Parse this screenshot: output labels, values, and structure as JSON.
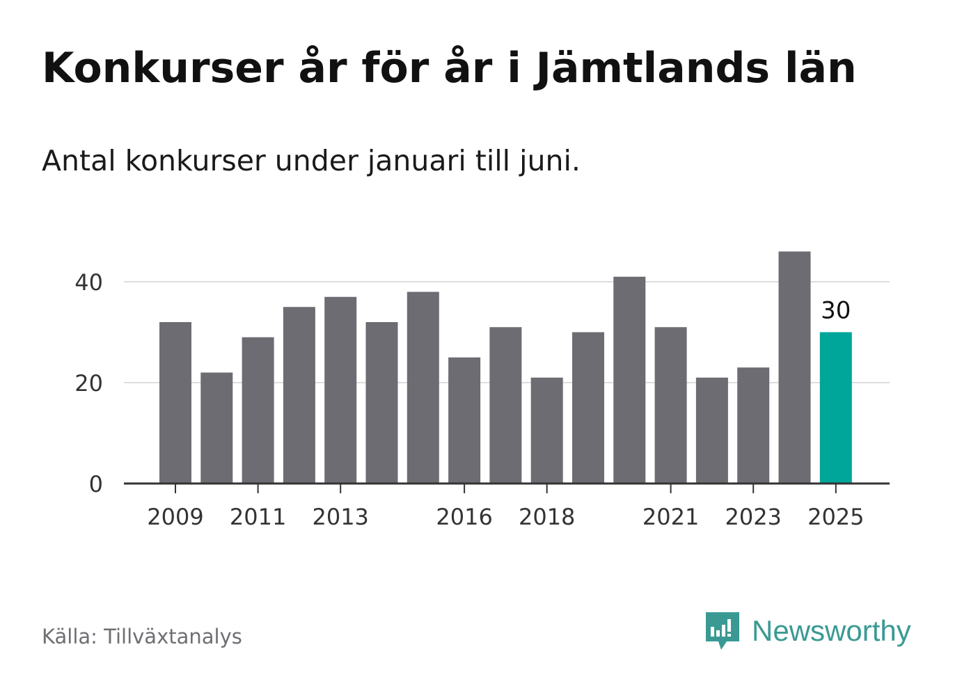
{
  "title": "Konkurser år för år i Jämtlands län",
  "subtitle": "Antal konkurser under januari till juni.",
  "source": "Källa: Tillväxtanalys",
  "brand": {
    "name": "Newsworthy",
    "icon": "newsworthy-logo-icon",
    "color": "#3a9a93"
  },
  "chart_data": {
    "type": "bar",
    "title": "Konkurser år för år i Jämtlands län",
    "subtitle": "Antal konkurser under januari till juni.",
    "categories": [
      "2009",
      "2010",
      "2011",
      "2012",
      "2013",
      "2014",
      "2015",
      "2016",
      "2017",
      "2018",
      "2019",
      "2020",
      "2021",
      "2022",
      "2023",
      "2024",
      "2025"
    ],
    "x_tick_labels": [
      "2009",
      "2011",
      "2013",
      "2016",
      "2018",
      "2021",
      "2023",
      "2025"
    ],
    "values": [
      32,
      22,
      29,
      35,
      37,
      32,
      38,
      25,
      31,
      21,
      30,
      41,
      31,
      21,
      23,
      46,
      30
    ],
    "ylim": [
      0,
      50
    ],
    "y_ticks": [
      0,
      20,
      40
    ],
    "grid": true,
    "colors": {
      "bar": "#6d6c72",
      "highlight": "#00a69a",
      "grid": "#dddddd",
      "axis": "#333333",
      "tick_text": "#333333"
    },
    "highlight_index": 16,
    "data_labels": [
      {
        "category": "2025",
        "value": 30,
        "text": "30"
      }
    ]
  }
}
